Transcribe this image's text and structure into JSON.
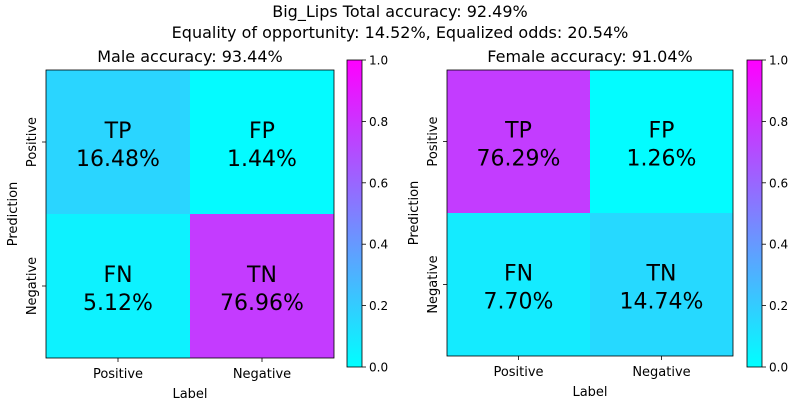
{
  "figure": {
    "title_line1": "Big_Lips    Total accuracy: 92.49%",
    "title_line2": "Equality of opportunity: 14.52%, Equalized odds: 20.54%"
  },
  "colormap": {
    "low": "#00ffff",
    "high": "#ff00ff",
    "range": [
      0,
      1
    ],
    "ticks": [
      "0.0",
      "0.2",
      "0.4",
      "0.6",
      "0.8",
      "1.0"
    ]
  },
  "chart_data": [
    {
      "type": "heatmap",
      "title": "Male accuracy: 93.44%",
      "xlabel": "Label",
      "ylabel": "Prediction",
      "x_categories": [
        "Positive",
        "Negative"
      ],
      "y_categories": [
        "Positive",
        "Negative"
      ],
      "cells": [
        [
          {
            "label": "TP",
            "value": "16.48%",
            "color_value": 0.1648
          },
          {
            "label": "FP",
            "value": "1.44%",
            "color_value": 0.0144
          }
        ],
        [
          {
            "label": "FN",
            "value": "5.12%",
            "color_value": 0.0512
          },
          {
            "label": "TN",
            "value": "76.96%",
            "color_value": 0.7696
          }
        ]
      ],
      "colorbar_range": [
        0,
        1
      ]
    },
    {
      "type": "heatmap",
      "title": "Female accuracy: 91.04%",
      "xlabel": "Label",
      "ylabel": "Prediction",
      "x_categories": [
        "Positive",
        "Negative"
      ],
      "y_categories": [
        "Positive",
        "Negative"
      ],
      "cells": [
        [
          {
            "label": "TP",
            "value": "76.29%",
            "color_value": 0.7629
          },
          {
            "label": "FP",
            "value": "1.26%",
            "color_value": 0.0126
          }
        ],
        [
          {
            "label": "FN",
            "value": "7.70%",
            "color_value": 0.077
          },
          {
            "label": "TN",
            "value": "14.74%",
            "color_value": 0.1474
          }
        ]
      ],
      "colorbar_range": [
        0,
        1
      ]
    }
  ]
}
